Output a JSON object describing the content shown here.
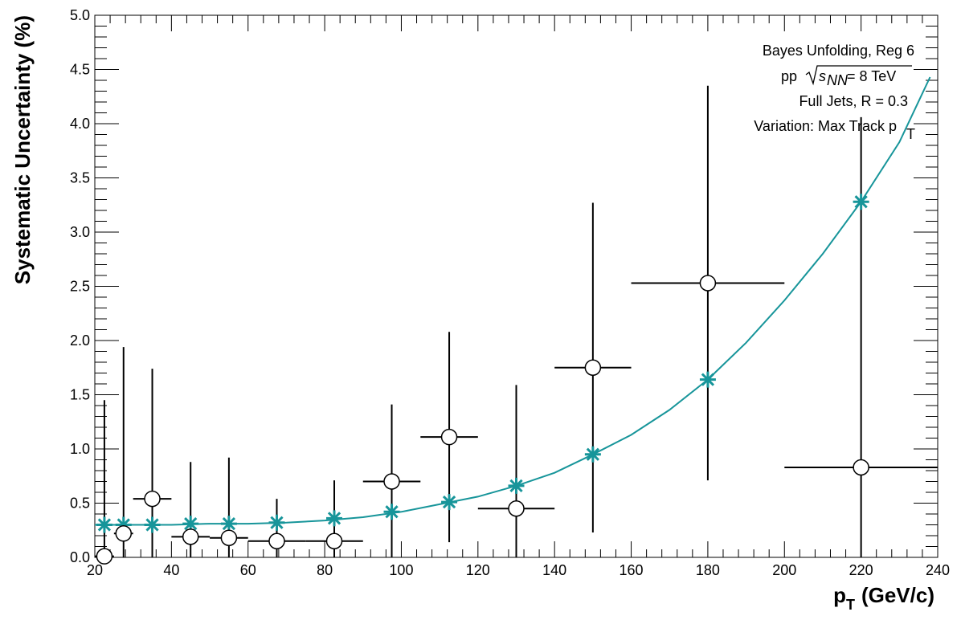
{
  "chart_data": {
    "type": "scatter",
    "xlabel": "p",
    "xlabel_sub": "T",
    "xlabel_unit": "(GeV/c)",
    "ylabel": "Systematic Uncertainty (%)",
    "xlim": [
      20,
      240
    ],
    "ylim": [
      0,
      5
    ],
    "x_ticks": [
      "20",
      "40",
      "60",
      "80",
      "100",
      "120",
      "140",
      "160",
      "180",
      "200",
      "220",
      "240"
    ],
    "y_ticks": [
      "0.0",
      "0.5",
      "1.0",
      "1.5",
      "2.0",
      "2.5",
      "3.0",
      "3.5",
      "4.0",
      "4.5",
      "5.0"
    ],
    "annotations": {
      "line1": "Bayes Unfolding, Reg 6",
      "line2_prefix": "pp",
      "line2_sqrt": "s",
      "line2_sub": "NN",
      "line2_suffix": "= 8 TeV",
      "line3": "Full Jets, R = 0.3",
      "line4_prefix": "Variation: Max Track p",
      "line4_sub": "T"
    },
    "colors": {
      "fit": "#17959a",
      "points": "#000000"
    },
    "series": [
      {
        "marker": "open-circle",
        "points": [
          {
            "x": 22.5,
            "y": 0.01,
            "xerr": 2.5,
            "yerr": 1.44
          },
          {
            "x": 27.5,
            "y": 0.22,
            "xerr": 2.5,
            "yerr": 1.72
          },
          {
            "x": 35,
            "y": 0.54,
            "xerr": 5,
            "yerr": 1.2
          },
          {
            "x": 45,
            "y": 0.19,
            "xerr": 5,
            "yerr": 0.69
          },
          {
            "x": 55,
            "y": 0.18,
            "xerr": 5,
            "yerr": 0.74
          },
          {
            "x": 67.5,
            "y": 0.15,
            "xerr": 7.5,
            "yerr": 0.39
          },
          {
            "x": 82.5,
            "y": 0.15,
            "xerr": 7.5,
            "yerr": 0.56
          },
          {
            "x": 97.5,
            "y": 0.7,
            "xerr": 7.5,
            "yerr": 0.71
          },
          {
            "x": 112.5,
            "y": 1.11,
            "xerr": 7.5,
            "yerr": 0.97
          },
          {
            "x": 130,
            "y": 0.45,
            "xerr": 10,
            "yerr": 1.14
          },
          {
            "x": 150,
            "y": 1.75,
            "xerr": 10,
            "yerr": 1.52
          },
          {
            "x": 180,
            "y": 2.53,
            "xerr": 20,
            "yerr": 1.82
          },
          {
            "x": 220,
            "y": 0.83,
            "xerr": 20,
            "yerr": 3.23
          }
        ]
      },
      {
        "marker": "star",
        "points": [
          {
            "x": 22.5,
            "y": 0.3
          },
          {
            "x": 27.5,
            "y": 0.3
          },
          {
            "x": 35,
            "y": 0.3
          },
          {
            "x": 45,
            "y": 0.31
          },
          {
            "x": 55,
            "y": 0.31
          },
          {
            "x": 67.5,
            "y": 0.32
          },
          {
            "x": 82.5,
            "y": 0.36
          },
          {
            "x": 97.5,
            "y": 0.42
          },
          {
            "x": 112.5,
            "y": 0.51
          },
          {
            "x": 130,
            "y": 0.66
          },
          {
            "x": 150,
            "y": 0.95
          },
          {
            "x": 180,
            "y": 1.64
          },
          {
            "x": 220,
            "y": 3.28
          }
        ]
      }
    ],
    "fit_curve": {
      "x": [
        20,
        30,
        40,
        50,
        60,
        70,
        80,
        90,
        100,
        110,
        120,
        130,
        140,
        150,
        160,
        170,
        180,
        190,
        200,
        210,
        220,
        230,
        238
      ],
      "y": [
        0.3,
        0.3,
        0.3,
        0.31,
        0.31,
        0.32,
        0.34,
        0.37,
        0.42,
        0.49,
        0.56,
        0.66,
        0.78,
        0.95,
        1.13,
        1.36,
        1.64,
        1.98,
        2.37,
        2.8,
        3.28,
        3.83,
        4.43
      ]
    }
  }
}
